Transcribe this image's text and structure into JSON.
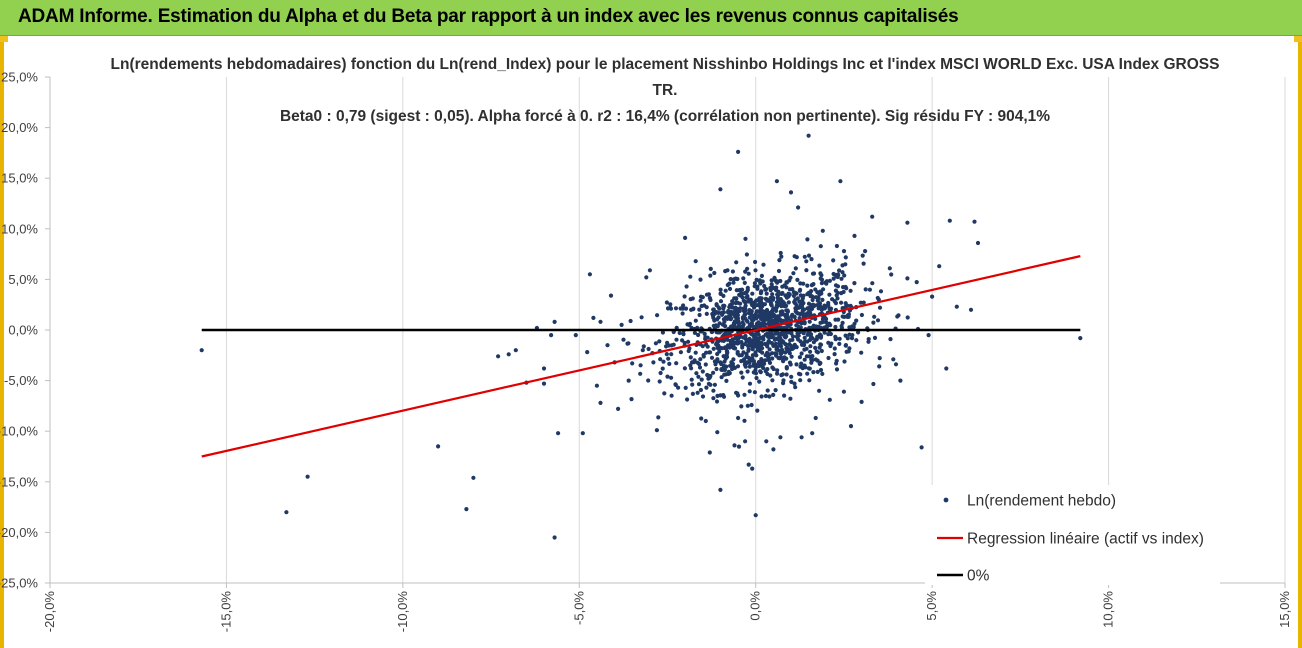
{
  "banner": {
    "title": "ADAM Informe. Estimation du Alpha et du Beta par rapport à un index avec les revenus connus capitalisés"
  },
  "colors": {
    "banner_bg": "#92d050",
    "frame": "#e8b400",
    "scatter": "#1f3864",
    "regression": "#e00000",
    "zero_line": "#000000"
  },
  "chart_data": {
    "type": "scatter",
    "title_lines": [
      "Ln(rendements hebdomadaires) fonction du Ln(rend_Index) pour le placement Nisshinbo Holdings Inc et l'index MSCI WORLD Exc. USA Index GROSS",
      "TR.",
      "Beta0 : 0,79 (sigest : 0,05). Alpha forcé à 0. r2 : 16,4% (corrélation non pertinente). Sig résidu FY : 904,1%"
    ],
    "xlim": [
      -20,
      15
    ],
    "ylim": [
      -25,
      25
    ],
    "x_ticks": [
      "-20,0%",
      "-15,0%",
      "-10,0%",
      "-5,0%",
      "0,0%",
      "5,0%",
      "10,0%",
      "15,0%"
    ],
    "y_ticks": [
      "25,0%",
      "20,0%",
      "15,0%",
      "10,0%",
      "5,0%",
      "0,0%",
      "-5,0%",
      "-10,0%",
      "-15,0%",
      "-20,0%",
      "-25,0%"
    ],
    "grid": "vertical",
    "legend_position": "bottom-right",
    "series": [
      {
        "name": "Ln(rendement hebdo)",
        "kind": "scatter",
        "points": [
          [
            -15.7,
            -2.0
          ],
          [
            -13.3,
            -18.0
          ],
          [
            -12.7,
            -14.5
          ],
          [
            -9.0,
            -11.5
          ],
          [
            -8.2,
            -17.7
          ],
          [
            -8.0,
            -14.6
          ],
          [
            -7.3,
            -2.6
          ],
          [
            -7.0,
            -2.4
          ],
          [
            -6.8,
            -2.0
          ],
          [
            -6.5,
            -5.2
          ],
          [
            -6.2,
            0.2
          ],
          [
            -6.0,
            -3.8
          ],
          [
            -6.0,
            -5.3
          ],
          [
            -5.7,
            0.8
          ],
          [
            -5.8,
            -0.5
          ],
          [
            -5.6,
            -10.2
          ],
          [
            -5.7,
            -20.5
          ],
          [
            -5.1,
            -0.5
          ],
          [
            -4.9,
            -10.2
          ],
          [
            -4.7,
            5.5
          ],
          [
            -4.6,
            1.2
          ],
          [
            -4.5,
            -5.5
          ],
          [
            -4.4,
            -7.2
          ],
          [
            -4.2,
            -1.5
          ],
          [
            -4.1,
            3.4
          ],
          [
            -4.0,
            -3.2
          ],
          [
            -3.9,
            -7.8
          ],
          [
            -3.8,
            0.5
          ],
          [
            -3.6,
            -5.0
          ],
          [
            -3.5,
            -3.3
          ],
          [
            -3.2,
            -2.0
          ],
          [
            -3.1,
            5.2
          ],
          [
            -3.0,
            5.9
          ],
          [
            -2.9,
            -3.2
          ],
          [
            -2.8,
            -9.9
          ],
          [
            -2.5,
            -4.6
          ],
          [
            -2.4,
            2.1
          ],
          [
            -2.2,
            -5.7
          ],
          [
            -2.0,
            9.1
          ],
          [
            -1.8,
            -5.4
          ],
          [
            -1.7,
            6.8
          ],
          [
            -1.5,
            -4.1
          ],
          [
            -1.3,
            -12.1
          ],
          [
            -1.2,
            -6.0
          ],
          [
            -1.0,
            -15.8
          ],
          [
            -1.0,
            13.9
          ],
          [
            -0.9,
            -6.6
          ],
          [
            -0.8,
            5.9
          ],
          [
            -0.6,
            -11.4
          ],
          [
            -0.5,
            -8.7
          ],
          [
            -0.3,
            -11.0
          ],
          [
            -0.2,
            -13.3
          ],
          [
            -0.1,
            -13.7
          ],
          [
            -0.5,
            17.6
          ],
          [
            0.0,
            -18.3
          ],
          [
            0.1,
            -5.1
          ],
          [
            0.3,
            -11.0
          ],
          [
            0.5,
            -11.8
          ],
          [
            0.6,
            14.7
          ],
          [
            0.7,
            -10.6
          ],
          [
            1.0,
            13.6
          ],
          [
            1.1,
            -5.3
          ],
          [
            1.2,
            12.1
          ],
          [
            1.3,
            -10.6
          ],
          [
            1.5,
            19.2
          ],
          [
            1.6,
            -10.2
          ],
          [
            1.7,
            -8.7
          ],
          [
            1.9,
            9.8
          ],
          [
            2.1,
            -6.9
          ],
          [
            2.3,
            8.3
          ],
          [
            2.4,
            14.7
          ],
          [
            2.5,
            -6.1
          ],
          [
            2.7,
            -9.5
          ],
          [
            2.8,
            9.3
          ],
          [
            3.0,
            -7.1
          ],
          [
            3.1,
            7.8
          ],
          [
            3.3,
            11.2
          ],
          [
            3.5,
            -3.6
          ],
          [
            3.8,
            6.1
          ],
          [
            3.9,
            -2.9
          ],
          [
            4.1,
            -5.0
          ],
          [
            4.3,
            10.6
          ],
          [
            4.3,
            5.1
          ],
          [
            4.6,
            0.1
          ],
          [
            4.7,
            -11.6
          ],
          [
            4.9,
            -0.5
          ],
          [
            5.0,
            3.3
          ],
          [
            5.2,
            6.3
          ],
          [
            5.4,
            -3.8
          ],
          [
            5.5,
            10.8
          ],
          [
            5.7,
            2.3
          ],
          [
            6.1,
            2.0
          ],
          [
            6.2,
            10.7
          ],
          [
            6.3,
            8.6
          ],
          [
            9.2,
            -0.8
          ]
        ]
      },
      {
        "name": "Regression linéaire (actif vs index)",
        "kind": "line",
        "points": [
          [
            -15.7,
            -12.5
          ],
          [
            9.2,
            7.3
          ]
        ]
      },
      {
        "name": "0%",
        "kind": "line",
        "points": [
          [
            -15.7,
            0
          ],
          [
            9.2,
            0
          ]
        ]
      }
    ]
  }
}
